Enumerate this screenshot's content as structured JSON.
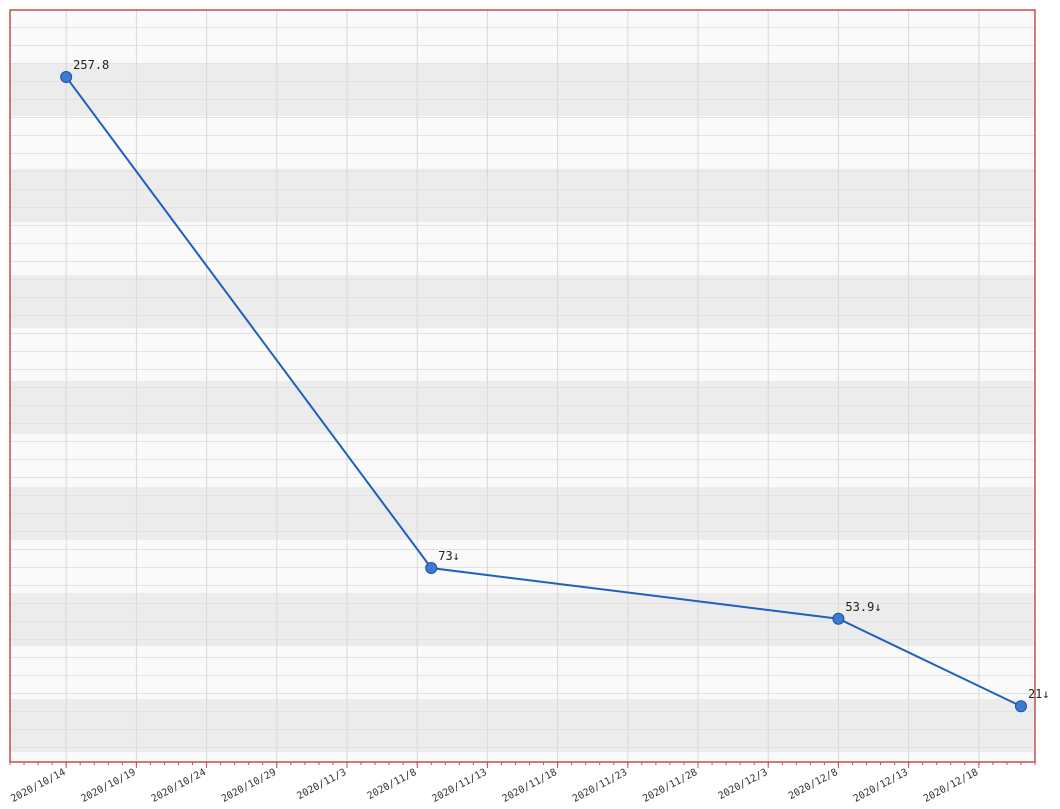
{
  "chart_data": {
    "type": "line",
    "x": [
      "2020/10/14",
      "2020/11/9",
      "2020/12/8",
      "2020/12/21"
    ],
    "series": [
      {
        "color": "#1f5fbf",
        "values": [
          257.8,
          73,
          53.9,
          21
        ],
        "value_labels": [
          "257.8",
          "73↓",
          "53.9↓",
          "21↓"
        ]
      }
    ],
    "xlim": [
      "2020/10/10",
      "2020/12/22"
    ],
    "ylim": [
      0,
      283
    ],
    "xticks": [
      "2020/10/14",
      "2020/10/19",
      "2020/10/24",
      "2020/10/29",
      "2020/11/3",
      "2020/11/8",
      "2020/11/13",
      "2020/11/18",
      "2020/11/23",
      "2020/11/28",
      "2020/12/3",
      "2020/12/8",
      "2020/12/13",
      "2020/12/18"
    ],
    "grid": true
  }
}
